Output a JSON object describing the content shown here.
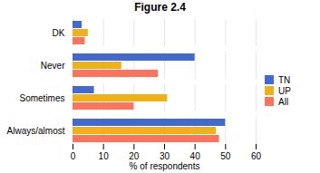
{
  "chart_data": {
    "type": "bar",
    "orientation": "horizontal",
    "title": "Figure 2.4",
    "categories": [
      "Always/almost",
      "Sometimes",
      "Never",
      "DK"
    ],
    "series": [
      {
        "name": "TN",
        "values": [
          50,
          7,
          40,
          3
        ]
      },
      {
        "name": "UP",
        "values": [
          47,
          31,
          16,
          5
        ]
      },
      {
        "name": "All",
        "values": [
          48,
          20,
          28,
          4
        ]
      }
    ],
    "xlabel": "% of respondents",
    "xlim": [
      0,
      60
    ],
    "xticks": [
      0,
      10,
      20,
      30,
      40,
      50,
      60
    ],
    "grid": true,
    "legend": "right"
  }
}
